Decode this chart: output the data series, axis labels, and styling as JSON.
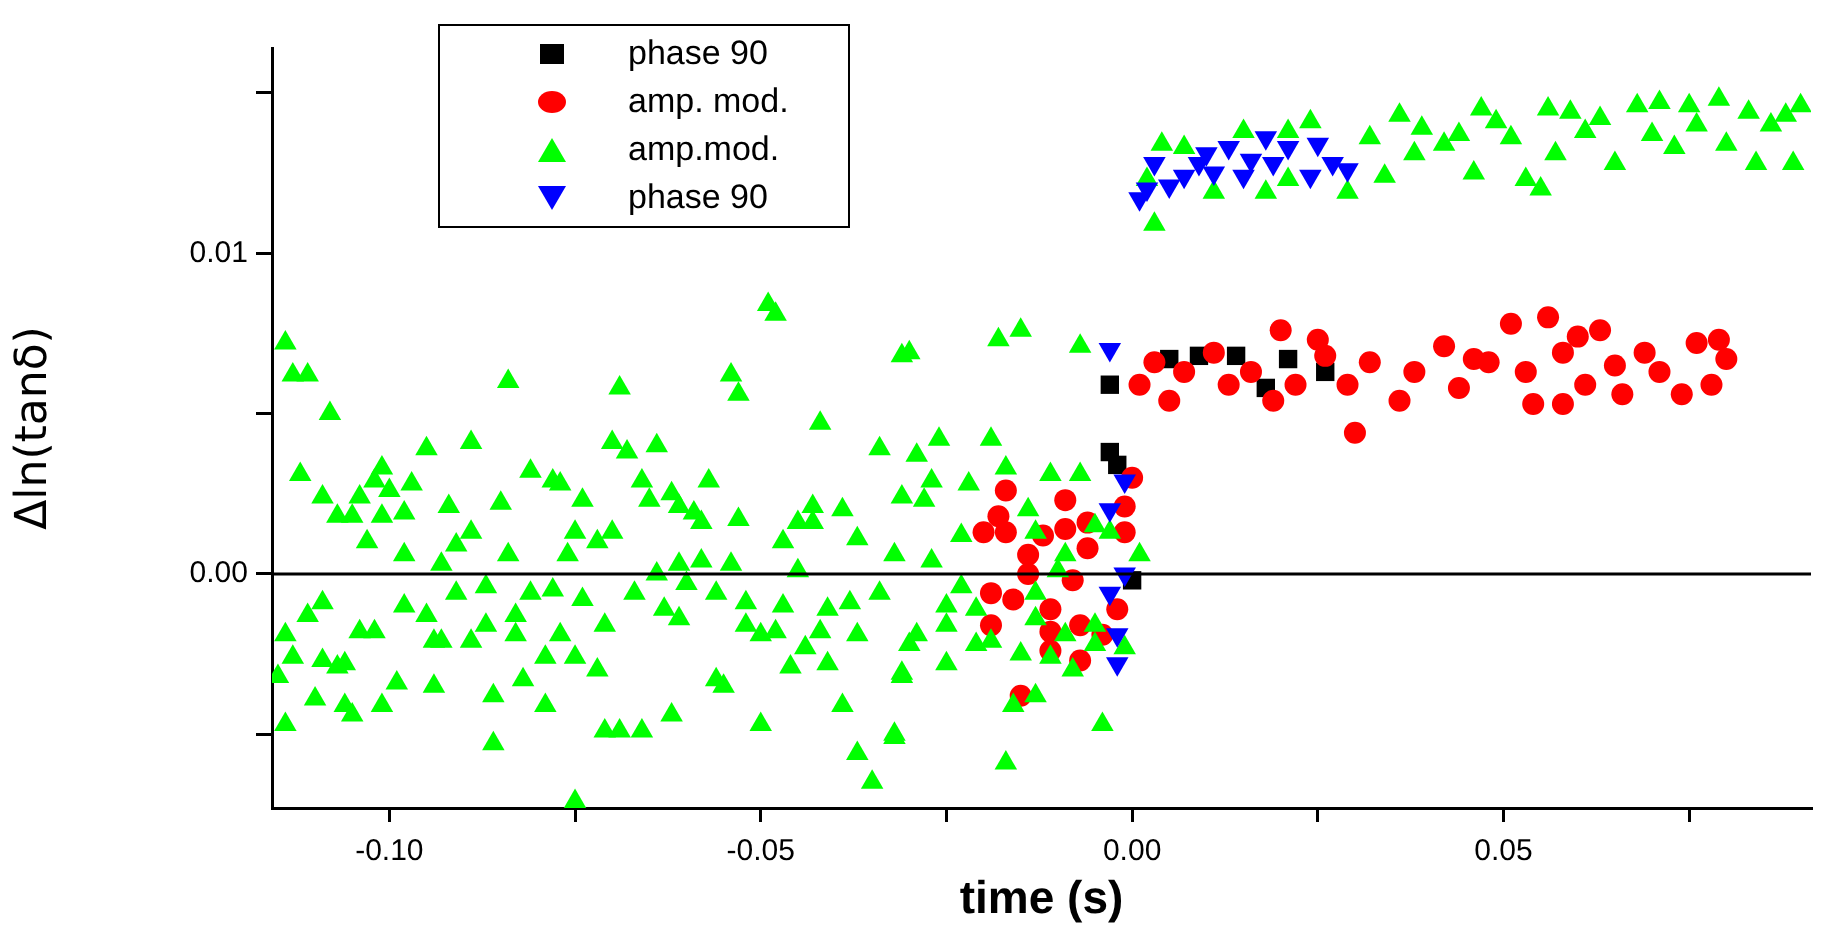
{
  "chart_data": {
    "type": "scatter",
    "xlabel": "time (s)",
    "ylabel": "Δln(tanδ)",
    "xlim": [
      -0.1158,
      0.0914
    ],
    "ylim": [
      -0.0073,
      0.0164
    ],
    "xticks": [
      {
        "value": -0.1,
        "label": "-0.10"
      },
      {
        "value": -0.075,
        "label": null
      },
      {
        "value": -0.05,
        "label": "-0.05"
      },
      {
        "value": -0.025,
        "label": null
      },
      {
        "value": 0,
        "label": "0.00"
      },
      {
        "value": 0.025,
        "label": null
      },
      {
        "value": 0.05,
        "label": "0.05"
      },
      {
        "value": 0.075,
        "label": null
      }
    ],
    "yticks": [
      {
        "value": -0.005,
        "label": null
      },
      {
        "value": 0,
        "label": "0.00"
      },
      {
        "value": 0.005,
        "label": null
      },
      {
        "value": 0.01,
        "label": "0.01"
      },
      {
        "value": 0.015,
        "label": null
      }
    ],
    "grid": false,
    "legend": "top",
    "ref_lines": [
      {
        "axis": "y",
        "value": 0,
        "color": "#000000"
      }
    ],
    "series": [
      {
        "name": "phase 90",
        "color": "#000000",
        "marker": "square",
        "x": [
          -0.003,
          -0.003,
          -0.002,
          0.0,
          0.001,
          0.002,
          0.005,
          0.009,
          0.011,
          0.014,
          0.018,
          0.021,
          0.026
        ],
        "values": [
          0.0059,
          0.0038,
          0.0034,
          -0.0002,
          null,
          null,
          0.0067,
          0.0068,
          null,
          0.0068,
          0.0058,
          0.0067,
          0.0063
        ]
      },
      {
        "name": "amp. mod.",
        "color": "#ff0000",
        "marker": "circle",
        "x": [
          -0.017,
          -0.009,
          -0.018,
          -0.02,
          -0.017,
          -0.012,
          -0.009,
          -0.006,
          -0.001,
          -0.001,
          -0.014,
          -0.006,
          -0.014,
          -0.008,
          -0.019,
          -0.016,
          -0.011,
          -0.002,
          -0.019,
          -0.011,
          -0.007,
          -0.004,
          -0.011,
          -0.007,
          -0.015,
          0.0,
          0.02,
          0.025,
          0.003,
          0.001,
          0.005,
          0.007,
          0.011,
          0.013,
          0.016,
          0.019,
          0.022,
          0.026,
          0.029,
          0.03,
          0.032,
          0.036,
          0.038,
          0.042,
          0.044,
          0.046,
          0.051,
          0.053,
          0.054,
          0.056,
          0.058,
          0.06,
          0.061,
          0.063,
          0.065,
          0.066,
          0.069,
          0.071,
          0.074,
          0.076,
          0.079,
          0.08,
          0.078,
          0.058,
          0.048
        ],
        "values": [
          0.0026,
          0.0023,
          0.0018,
          0.0013,
          0.0013,
          0.0012,
          0.0014,
          0.0016,
          0.0021,
          0.0013,
          0.0006,
          0.0008,
          0.0,
          -0.0002,
          -0.0006,
          -0.0008,
          -0.0011,
          -0.0011,
          -0.0016,
          -0.0018,
          -0.0016,
          -0.0019,
          -0.0024,
          -0.0027,
          -0.0038,
          0.003,
          0.0076,
          0.0073,
          0.0066,
          0.0059,
          0.0054,
          0.0063,
          0.0069,
          0.0059,
          0.0063,
          0.0054,
          0.0059,
          0.0068,
          0.0059,
          0.0044,
          0.0066,
          0.0054,
          0.0063,
          0.0071,
          0.0058,
          0.0067,
          0.0078,
          0.0063,
          0.0053,
          0.008,
          0.0069,
          0.0074,
          0.0059,
          0.0076,
          0.0065,
          0.0056,
          0.0069,
          0.0063,
          0.0056,
          0.0072,
          0.0073,
          0.0067,
          0.0059,
          0.0053,
          0.0066
        ]
      },
      {
        "name": "amp.mod.",
        "color": "#00ff00",
        "marker": "triangle",
        "x": [
          -0.114,
          -0.113,
          -0.111,
          -0.108,
          -0.112,
          -0.109,
          -0.107,
          -0.105,
          -0.104,
          -0.102,
          -0.101,
          -0.1,
          -0.101,
          -0.098,
          -0.097,
          -0.095,
          -0.103,
          -0.098,
          -0.092,
          -0.089,
          -0.084,
          -0.085,
          -0.089,
          -0.091,
          -0.093,
          -0.084,
          -0.081,
          -0.078,
          -0.077,
          -0.074,
          -0.075,
          -0.072,
          -0.07,
          -0.076,
          -0.069,
          -0.07,
          -0.068,
          -0.064,
          -0.066,
          -0.065,
          -0.062,
          -0.061,
          -0.057,
          -0.059,
          -0.058,
          -0.053,
          -0.054,
          -0.053,
          -0.049,
          -0.048,
          -0.042,
          -0.047,
          -0.045,
          -0.043,
          -0.043,
          -0.039,
          -0.037,
          -0.034,
          -0.031,
          -0.031,
          -0.032,
          -0.061,
          -0.058,
          -0.054,
          -0.045,
          -0.064,
          -0.114,
          -0.113,
          -0.115,
          -0.111,
          -0.109,
          -0.109,
          -0.107,
          -0.106,
          -0.11,
          -0.114,
          -0.106,
          -0.105,
          -0.104,
          -0.102,
          -0.101,
          -0.099,
          -0.098,
          -0.095,
          -0.094,
          -0.094,
          -0.093,
          -0.091,
          -0.087,
          -0.087,
          -0.089,
          -0.086,
          -0.086,
          -0.083,
          -0.083,
          -0.082,
          -0.081,
          -0.078,
          -0.077,
          -0.079,
          -0.079,
          -0.075,
          -0.075,
          -0.074,
          -0.072,
          -0.071,
          -0.071,
          -0.069,
          -0.066,
          -0.067,
          -0.062,
          -0.063,
          -0.061,
          -0.06,
          -0.056,
          -0.056,
          -0.055,
          -0.052,
          -0.052,
          -0.05,
          -0.05,
          -0.048,
          -0.046,
          -0.047,
          -0.044,
          -0.042,
          -0.041,
          -0.041,
          -0.039,
          -0.038,
          -0.037,
          -0.037,
          -0.035,
          -0.034,
          -0.032,
          -0.031,
          -0.03,
          -0.03,
          -0.018,
          -0.015,
          -0.007,
          -0.026,
          -0.019,
          -0.029,
          -0.027,
          -0.022,
          -0.017,
          -0.011,
          -0.007,
          -0.028,
          -0.023,
          -0.014,
          -0.005,
          -0.003,
          0.001,
          -0.009,
          -0.013,
          -0.027,
          -0.023,
          -0.025,
          -0.021,
          -0.025,
          -0.029,
          -0.031,
          -0.025,
          -0.021,
          -0.019,
          -0.015,
          -0.013,
          -0.009,
          -0.005,
          -0.005,
          -0.011,
          -0.008,
          -0.001,
          -0.013,
          -0.016,
          -0.004,
          -0.017,
          -0.032,
          -0.01,
          -0.013,
          0.003,
          0.004,
          0.002,
          0.007,
          0.011,
          0.015,
          0.018,
          0.021,
          0.024,
          0.021,
          0.029,
          0.032,
          0.034,
          0.036,
          0.038,
          0.039,
          0.042,
          0.044,
          0.046,
          0.047,
          0.049,
          0.051,
          0.053,
          0.055,
          0.056,
          0.057,
          0.059,
          0.061,
          0.063,
          0.065,
          0.068,
          0.07,
          0.071,
          0.073,
          0.075,
          0.076,
          0.079,
          0.08,
          0.083,
          0.084,
          0.086,
          0.088,
          0.089,
          0.09
        ],
        "values": [
          0.0072,
          0.0062,
          0.0062,
          0.005,
          0.0031,
          0.0024,
          0.0018,
          0.0018,
          0.0024,
          0.0029,
          0.0033,
          0.0026,
          0.0018,
          0.0019,
          0.0028,
          0.0039,
          0.001,
          0.0006,
          0.0021,
          0.0041,
          0.006,
          0.0022,
          0.0013,
          0.0009,
          0.0003,
          0.0006,
          0.0032,
          0.0029,
          0.0028,
          0.0023,
          0.0013,
          0.001,
          0.0013,
          0.0006,
          0.0058,
          0.0041,
          0.0038,
          0.004,
          0.0029,
          0.0023,
          0.0025,
          0.0021,
          0.0029,
          0.0019,
          0.0016,
          0.0017,
          0.0062,
          0.0056,
          0.0084,
          0.0081,
          0.0047,
          0.001,
          0.0016,
          0.0016,
          0.0021,
          0.002,
          0.0011,
          0.0039,
          0.0068,
          0.0024,
          0.0006,
          0.0003,
          0.0004,
          0.0003,
          0.0001,
          0.0,
          -0.0019,
          -0.0026,
          -0.0032,
          -0.0013,
          -0.0009,
          -0.0027,
          -0.0029,
          -0.0028,
          -0.0039,
          -0.0047,
          -0.0041,
          -0.0044,
          -0.0018,
          -0.0018,
          -0.0041,
          -0.0034,
          -0.001,
          -0.0013,
          -0.0021,
          -0.0035,
          -0.0021,
          -0.0006,
          -0.0004,
          -0.0016,
          -0.0021,
          -0.0038,
          -0.0053,
          -0.0013,
          -0.0019,
          -0.0033,
          -0.0006,
          -0.0005,
          -0.0019,
          -0.0026,
          -0.0041,
          -0.0026,
          -0.0071,
          -0.0008,
          -0.003,
          -0.0016,
          -0.0049,
          -0.0049,
          -0.0049,
          -0.0006,
          -0.0044,
          -0.0011,
          -0.0014,
          -0.0003,
          -0.0006,
          -0.0033,
          -0.0035,
          -0.0009,
          -0.0016,
          -0.0047,
          -0.0019,
          -0.0018,
          -0.0029,
          -0.001,
          -0.0023,
          -0.0018,
          -0.0028,
          -0.0011,
          -0.0041,
          -0.0009,
          -0.0019,
          -0.0056,
          -0.0065,
          -0.0006,
          -0.0051,
          -0.0032,
          -0.0022,
          0.0069,
          0.0073,
          0.0076,
          0.0071,
          0.0042,
          0.0042,
          0.0037,
          0.0029,
          0.0028,
          0.0033,
          0.0031,
          0.0031,
          0.0023,
          0.0012,
          0.002,
          0.0015,
          0.0013,
          0.0006,
          0.0006,
          0.0013,
          0.0004,
          -0.0004,
          -0.001,
          -0.0011,
          -0.0016,
          -0.0019,
          -0.0031,
          -0.0028,
          -0.0022,
          -0.0021,
          -0.0025,
          -0.0014,
          -0.0019,
          -0.0016,
          -0.0022,
          -0.0026,
          -0.003,
          -0.0023,
          -0.0038,
          -0.0041,
          -0.0047,
          -0.0059,
          -0.005,
          0.0001,
          -0.0006,
          0.0109,
          0.0134,
          0.0123,
          0.0133,
          0.0119,
          0.0138,
          0.0119,
          0.0138,
          0.0141,
          0.0123,
          0.0119,
          0.0136,
          0.0124,
          0.0143,
          0.0131,
          0.0139,
          0.0134,
          0.0137,
          0.0125,
          0.0145,
          0.0141,
          0.0136,
          0.0123,
          0.012,
          0.0145,
          0.0131,
          0.0144,
          0.0138,
          0.0142,
          0.0128,
          0.0146,
          0.0137,
          0.0147,
          0.0133,
          0.0146,
          0.014,
          0.0148,
          0.0134,
          0.0144,
          0.0128,
          0.014,
          0.0143,
          0.0128,
          0.0146
        ]
      },
      {
        "name": "phase 90",
        "color": "#0000ff",
        "marker": "triangle-down",
        "x": [
          0.001,
          0.002,
          0.003,
          0.005,
          0.007,
          0.01,
          0.011,
          0.013,
          0.015,
          0.018,
          0.019,
          0.021,
          0.024,
          0.025,
          0.027,
          0.029,
          0.016,
          0.009,
          -0.003,
          -0.001,
          -0.003,
          -0.001,
          -0.003,
          -0.002,
          -0.002
        ],
        "values": [
          0.0117,
          0.012,
          0.0128,
          0.0121,
          0.0124,
          0.0131,
          0.0125,
          0.0133,
          0.0124,
          0.0136,
          0.0128,
          0.0133,
          0.0124,
          0.0134,
          0.0128,
          0.0126,
          0.0129,
          0.0128,
          0.007,
          0.0029,
          0.002,
          0.0,
          -0.0006,
          -0.0019,
          -0.0028
        ]
      }
    ]
  }
}
